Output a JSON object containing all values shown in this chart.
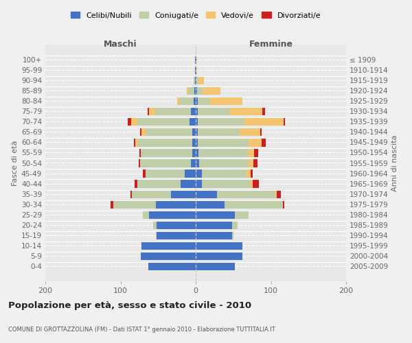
{
  "age_groups": [
    "0-4",
    "5-9",
    "10-14",
    "15-19",
    "20-24",
    "25-29",
    "30-34",
    "35-39",
    "40-44",
    "45-49",
    "50-54",
    "55-59",
    "60-64",
    "65-69",
    "70-74",
    "75-79",
    "80-84",
    "85-89",
    "90-94",
    "95-99",
    "100+"
  ],
  "birth_years": [
    "2005-2009",
    "2000-2004",
    "1995-1999",
    "1990-1994",
    "1985-1989",
    "1980-1984",
    "1975-1979",
    "1970-1974",
    "1965-1969",
    "1960-1964",
    "1955-1959",
    "1950-1954",
    "1945-1949",
    "1940-1944",
    "1935-1939",
    "1930-1934",
    "1925-1929",
    "1920-1924",
    "1915-1919",
    "1910-1914",
    "≤ 1909"
  ],
  "males_celibi": [
    63,
    73,
    72,
    52,
    52,
    62,
    53,
    33,
    20,
    15,
    6,
    5,
    5,
    5,
    8,
    6,
    3,
    2,
    1,
    1,
    1
  ],
  "males_coniugati": [
    0,
    0,
    0,
    1,
    5,
    8,
    57,
    52,
    58,
    52,
    68,
    68,
    72,
    62,
    70,
    48,
    18,
    8,
    2,
    0,
    0
  ],
  "males_vedovi": [
    0,
    0,
    0,
    0,
    0,
    0,
    0,
    0,
    0,
    0,
    0,
    0,
    3,
    5,
    8,
    8,
    4,
    2,
    0,
    0,
    0
  ],
  "males_divorziati": [
    0,
    0,
    0,
    0,
    0,
    0,
    3,
    2,
    3,
    3,
    2,
    2,
    2,
    2,
    4,
    2,
    0,
    0,
    0,
    0,
    0
  ],
  "females_nubili": [
    52,
    62,
    62,
    48,
    48,
    52,
    38,
    28,
    8,
    8,
    5,
    4,
    3,
    3,
    3,
    3,
    3,
    2,
    1,
    1,
    1
  ],
  "females_coniugate": [
    0,
    0,
    0,
    2,
    8,
    18,
    78,
    78,
    65,
    60,
    65,
    65,
    67,
    55,
    62,
    43,
    16,
    7,
    3,
    0,
    0
  ],
  "females_vedove": [
    0,
    0,
    0,
    0,
    0,
    0,
    0,
    2,
    3,
    5,
    7,
    9,
    18,
    28,
    52,
    43,
    43,
    24,
    7,
    1,
    1
  ],
  "females_divorziate": [
    0,
    0,
    0,
    0,
    0,
    0,
    2,
    5,
    8,
    3,
    5,
    5,
    5,
    2,
    2,
    3,
    0,
    0,
    0,
    0,
    0
  ],
  "color_celibi": "#4472C4",
  "color_coniugati": "#BFCEA8",
  "color_vedovi": "#F4C470",
  "color_divorziati": "#CC2020",
  "bg_axes": "#e8e8e8",
  "bg_fig": "#f0f0f0",
  "grid_color": "#ffffff",
  "title": "Popolazione per età, sesso e stato civile - 2010",
  "subtitle": "COMUNE DI GROTTAZZOLINA (FM) - Dati ISTAT 1° gennaio 2010 - Elaborazione TUTTITALIA.IT",
  "label_maschi": "Maschi",
  "label_femmine": "Femmine",
  "ylabel_left": "Fasce di età",
  "ylabel_right": "Anni di nascita",
  "xlim": 200,
  "xticks": [
    -200,
    -100,
    0,
    100,
    200
  ],
  "xtick_labels": [
    "200",
    "100",
    "0",
    "100",
    "200"
  ],
  "legend_labels": [
    "Celibi/Nubili",
    "Coniugati/e",
    "Vedovi/e",
    "Divorziati/e"
  ]
}
